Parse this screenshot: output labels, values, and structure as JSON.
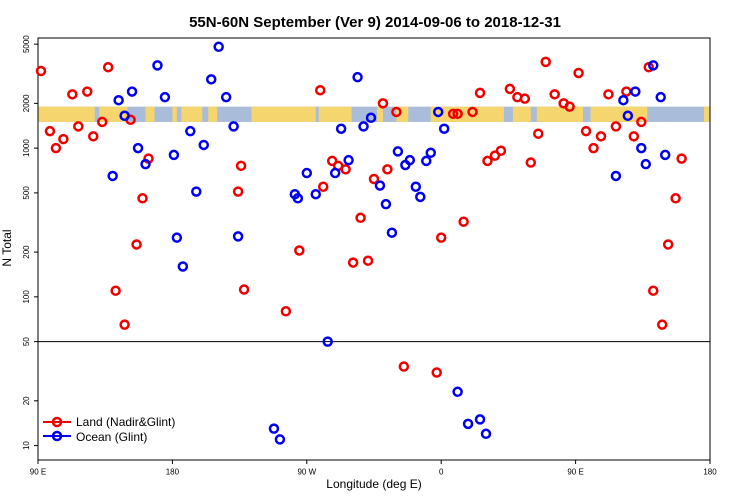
{
  "chart_data": {
    "type": "scatter",
    "title": "55N-60N September (Ver 9)   2014-09-06 to 2018-12-31",
    "xlabel": "Longitude (deg E)",
    "ylabel": "N Total",
    "xscale": "longitude, 90E to 180 wrapping through 180 and 0",
    "xlim_deg_east": [
      90,
      540
    ],
    "x_ticks": [
      {
        "value": 90,
        "label": "90 E"
      },
      {
        "value": 180,
        "label": "180"
      },
      {
        "value": 270,
        "label": "90 W"
      },
      {
        "value": 360,
        "label": "0"
      },
      {
        "value": 450,
        "label": "90 E"
      },
      {
        "value": 540,
        "label": "180"
      }
    ],
    "yscale": "log",
    "ylim": [
      8,
      5500
    ],
    "y_ticks": [
      {
        "value": 10,
        "label": "10"
      },
      {
        "value": 20,
        "label": "20"
      },
      {
        "value": 50,
        "label": "50"
      },
      {
        "value": 100,
        "label": "100"
      },
      {
        "value": 200,
        "label": "200"
      },
      {
        "value": 500,
        "label": "500"
      },
      {
        "value": 1000,
        "label": "1000"
      },
      {
        "value": 2000,
        "label": "2000"
      },
      {
        "value": 5000,
        "label": "5000"
      }
    ],
    "reference_line": {
      "y": 50,
      "color": "#000000"
    },
    "land_band": {
      "y_low": 1500,
      "y_high": 1900,
      "land_color": "#F5D56E",
      "ocean_color": "#A9BCD9"
    },
    "legend_position": "bottom-left",
    "series": [
      {
        "name": "Land (Nadir&Glint)",
        "color": "#EE0000",
        "points": [
          [
            92,
            3300
          ],
          [
            98,
            1300
          ],
          [
            102,
            1000
          ],
          [
            107,
            1150
          ],
          [
            113,
            2300
          ],
          [
            117,
            1400
          ],
          [
            123,
            2400
          ],
          [
            127,
            1200
          ],
          [
            133,
            1500
          ],
          [
            137,
            3500
          ],
          [
            142,
            110
          ],
          [
            148,
            65
          ],
          [
            152,
            1550
          ],
          [
            156,
            225
          ],
          [
            160,
            460
          ],
          [
            164,
            850
          ],
          [
            224,
            510
          ],
          [
            226,
            760
          ],
          [
            228,
            112
          ],
          [
            279,
            2450
          ],
          [
            256,
            80
          ],
          [
            265,
            205
          ],
          [
            281,
            550
          ],
          [
            287,
            820
          ],
          [
            291,
            760
          ],
          [
            296,
            720
          ],
          [
            301,
            170
          ],
          [
            306,
            340
          ],
          [
            311,
            175
          ],
          [
            315,
            620
          ],
          [
            321,
            2000
          ],
          [
            324,
            720
          ],
          [
            330,
            1750
          ],
          [
            335,
            34
          ],
          [
            357,
            31
          ],
          [
            360,
            250
          ],
          [
            368,
            1700
          ],
          [
            371,
            1700
          ],
          [
            375,
            320
          ],
          [
            381,
            1750
          ],
          [
            386,
            2350
          ],
          [
            391,
            820
          ],
          [
            396,
            890
          ],
          [
            400,
            960
          ],
          [
            406,
            2500
          ],
          [
            411,
            2200
          ],
          [
            416,
            2150
          ],
          [
            420,
            800
          ],
          [
            425,
            1250
          ],
          [
            430,
            3800
          ],
          [
            436,
            2300
          ],
          [
            442,
            2000
          ],
          [
            446,
            1900
          ],
          [
            452,
            3200
          ],
          [
            457,
            1300
          ],
          [
            462,
            1000
          ],
          [
            467,
            1200
          ],
          [
            472,
            2300
          ],
          [
            477,
            1400
          ],
          [
            484,
            2400
          ],
          [
            489,
            1200
          ],
          [
            494,
            1500
          ],
          [
            499,
            3500
          ],
          [
            502,
            110
          ],
          [
            508,
            65
          ],
          [
            512,
            225
          ],
          [
            517,
            460
          ],
          [
            521,
            850
          ]
        ]
      },
      {
        "name": "Ocean (Glint)",
        "color": "#0000EE",
        "points": [
          [
            140,
            650
          ],
          [
            144,
            2100
          ],
          [
            148,
            1650
          ],
          [
            153,
            2400
          ],
          [
            157,
            1000
          ],
          [
            162,
            780
          ],
          [
            170,
            3600
          ],
          [
            175,
            2200
          ],
          [
            181,
            900
          ],
          [
            183,
            250
          ],
          [
            187,
            160
          ],
          [
            192,
            1300
          ],
          [
            196,
            510
          ],
          [
            201,
            1050
          ],
          [
            206,
            2900
          ],
          [
            211,
            4800
          ],
          [
            216,
            2200
          ],
          [
            221,
            1400
          ],
          [
            224,
            255
          ],
          [
            248,
            13
          ],
          [
            252,
            11
          ],
          [
            262,
            490
          ],
          [
            264,
            460
          ],
          [
            270,
            680
          ],
          [
            276,
            490
          ],
          [
            284,
            50
          ],
          [
            289,
            680
          ],
          [
            293,
            1350
          ],
          [
            298,
            830
          ],
          [
            304,
            3000
          ],
          [
            308,
            1400
          ],
          [
            313,
            1600
          ],
          [
            319,
            560
          ],
          [
            323,
            420
          ],
          [
            327,
            270
          ],
          [
            331,
            950
          ],
          [
            336,
            770
          ],
          [
            339,
            830
          ],
          [
            343,
            550
          ],
          [
            346,
            470
          ],
          [
            350,
            820
          ],
          [
            353,
            930
          ],
          [
            358,
            1750
          ],
          [
            362,
            1350
          ],
          [
            371,
            23
          ],
          [
            378,
            14
          ],
          [
            386,
            15
          ],
          [
            390,
            12
          ],
          [
            477,
            650
          ],
          [
            482,
            2100
          ],
          [
            485,
            1650
          ],
          [
            490,
            2400
          ],
          [
            494,
            1000
          ],
          [
            497,
            780
          ],
          [
            502,
            3600
          ],
          [
            507,
            2200
          ],
          [
            510,
            900
          ]
        ]
      }
    ]
  }
}
